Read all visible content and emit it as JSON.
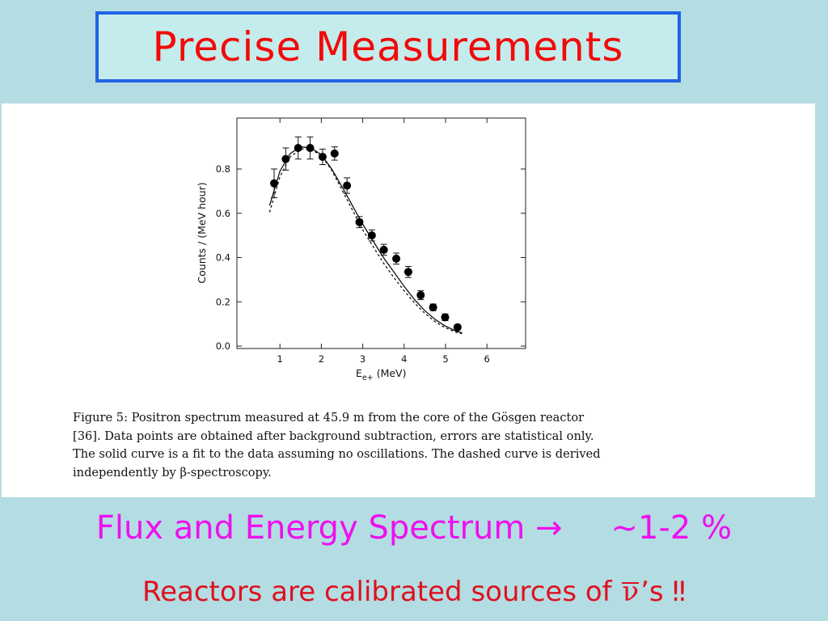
{
  "slide": {
    "title": "Precise Measurements",
    "line1_main": "Flux and Energy Spectrum",
    "line1_arrow": "→",
    "line1_value": "~1-2 %",
    "line2_prefix": "Reactors are calibrated sources of ",
    "line2_symbol": "ν",
    "line2_suffix": "’s ‼"
  },
  "caption": {
    "lines": [
      "Figure 5:  Positron spectrum measured at 45.9 m from the core of the Gösgen reactor",
      "[36].  Data points are obtained after background subtraction, errors are statistical only.",
      "The solid curve is a fit to the data assuming no oscillations.  The dashed curve is derived",
      "independently by β-spectroscopy."
    ]
  },
  "colors": {
    "background": "#b3dde3",
    "title_text": "#f20a0a",
    "title_border": "#1f63e6",
    "title_fill": "#c4ecec",
    "line1_text": "#ee10ee",
    "line2_text": "#e0101f"
  },
  "chart_data": {
    "type": "scatter",
    "xlabel_main": "E",
    "xlabel_sub": "e+",
    "xlabel_unit": " (MeV)",
    "ylabel": "Counts / (MeV hour)",
    "xlim": [
      0.0,
      7.0
    ],
    "ylim": [
      0.0,
      1.0
    ],
    "xticks": [
      1,
      2,
      3,
      4,
      5,
      6
    ],
    "yticks": [
      0.0,
      0.2,
      0.4,
      0.6,
      0.8
    ],
    "ytick_labels": [
      "0.0",
      "0.2",
      "0.4",
      "0.6",
      "0.8"
    ],
    "points": [
      {
        "x": 0.86,
        "y": 0.735,
        "err": 0.065
      },
      {
        "x": 1.14,
        "y": 0.845,
        "err": 0.05
      },
      {
        "x": 1.44,
        "y": 0.895,
        "err": 0.05
      },
      {
        "x": 1.73,
        "y": 0.895,
        "err": 0.05
      },
      {
        "x": 2.03,
        "y": 0.855,
        "err": 0.035
      },
      {
        "x": 2.32,
        "y": 0.87,
        "err": 0.03
      },
      {
        "x": 2.62,
        "y": 0.725,
        "err": 0.035
      },
      {
        "x": 2.92,
        "y": 0.56,
        "err": 0.025
      },
      {
        "x": 3.22,
        "y": 0.5,
        "err": 0.025
      },
      {
        "x": 3.51,
        "y": 0.435,
        "err": 0.025
      },
      {
        "x": 3.81,
        "y": 0.395,
        "err": 0.025
      },
      {
        "x": 4.1,
        "y": 0.335,
        "err": 0.025
      },
      {
        "x": 4.4,
        "y": 0.23,
        "err": 0.02
      },
      {
        "x": 4.7,
        "y": 0.175,
        "err": 0.015
      },
      {
        "x": 4.99,
        "y": 0.13,
        "err": 0.015
      },
      {
        "x": 5.29,
        "y": 0.085,
        "err": 0.012
      }
    ],
    "series": [
      {
        "name": "fit assuming no oscillations",
        "style": "solid",
        "x": [
          0.75,
          1.0,
          1.25,
          1.5,
          1.75,
          2.0,
          2.25,
          2.5,
          2.75,
          3.0,
          3.25,
          3.5,
          3.75,
          4.0,
          4.25,
          4.5,
          4.75,
          5.0,
          5.25,
          5.4
        ],
        "y": [
          0.635,
          0.79,
          0.87,
          0.9,
          0.895,
          0.865,
          0.8,
          0.72,
          0.635,
          0.55,
          0.475,
          0.4,
          0.335,
          0.27,
          0.21,
          0.16,
          0.12,
          0.09,
          0.068,
          0.06
        ]
      },
      {
        "name": "β-spectroscopy",
        "style": "dashed",
        "x": [
          0.75,
          1.0,
          1.25,
          1.5,
          1.75,
          2.0,
          2.25,
          2.5,
          2.75,
          3.0,
          3.25,
          3.5,
          3.75,
          4.0,
          4.25,
          4.5,
          4.75,
          5.0,
          5.25,
          5.4
        ],
        "y": [
          0.605,
          0.765,
          0.855,
          0.89,
          0.89,
          0.86,
          0.795,
          0.705,
          0.615,
          0.525,
          0.45,
          0.375,
          0.31,
          0.25,
          0.195,
          0.148,
          0.11,
          0.082,
          0.063,
          0.056
        ]
      }
    ]
  }
}
